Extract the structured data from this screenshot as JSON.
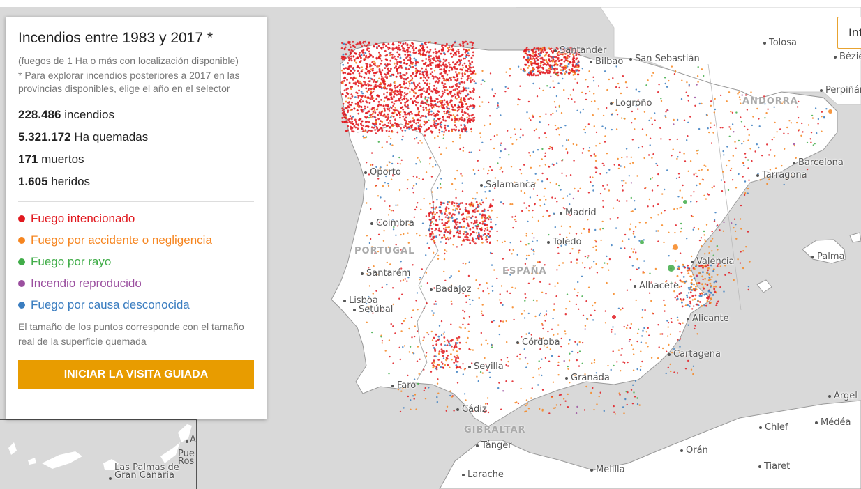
{
  "panel": {
    "title": "Incendios entre 1983 y 2017 *",
    "subtitle": "(fuegos de 1 Ha o más con localización disponible)",
    "note_selector": "* Para explorar incendios posteriores a 2017 en las provincias disponibles, elige el año en el selector",
    "stats": [
      {
        "value": "228.486",
        "label": "incendios"
      },
      {
        "value": "5.321.172",
        "label": "Ha quemadas"
      },
      {
        "value": "171",
        "label": "muertos"
      },
      {
        "value": "1.605",
        "label": "heridos"
      }
    ],
    "legend": [
      {
        "label": "Fuego intencionado",
        "color": "#e1191f"
      },
      {
        "label": "Fuego por accidente o negligencia",
        "color": "#f6851f"
      },
      {
        "label": "Fuego por rayo",
        "color": "#41ad49"
      },
      {
        "label": "Incendio reproducido",
        "color": "#9b4f9f"
      },
      {
        "label": "Fuego por causa desconocida",
        "color": "#3a7dc0"
      }
    ],
    "size_note": "El tamaño de los puntos corresponde con el tamaño real de la superficie quemada",
    "tour_button": "INICIAR LA VISITA GUIADA"
  },
  "info_button": "Inf",
  "countries": [
    "PORTUGAL",
    "ESPAÑA",
    "ANDORRA",
    "GIBRALTAR"
  ],
  "cities": [
    "Santander",
    "Bilbao",
    "San Sebastián",
    "Tolosa",
    "Béziers",
    "Perpiñán",
    "Logroño",
    "Oporto",
    "Barcelona",
    "Tarragona",
    "Salamanca",
    "Madrid",
    "Coimbra",
    "Toledo",
    "Valencia",
    "Palma",
    "Santarém",
    "Albacete",
    "Badajoz",
    "Lisboa",
    "Setúbal",
    "Alicante",
    "Córdoba",
    "Cartagena",
    "Sevilla",
    "Granada",
    "Faro",
    "Cádiz",
    "Tánger",
    "Argel",
    "Chlef",
    "Médéa",
    "Orán",
    "Melilla",
    "Tiaret",
    "Larache",
    "Las Palmas de Gran Canaria"
  ],
  "map_colors": {
    "sea": "#d9d9d9",
    "land": "#ffffff",
    "accent": "#e89c00"
  }
}
